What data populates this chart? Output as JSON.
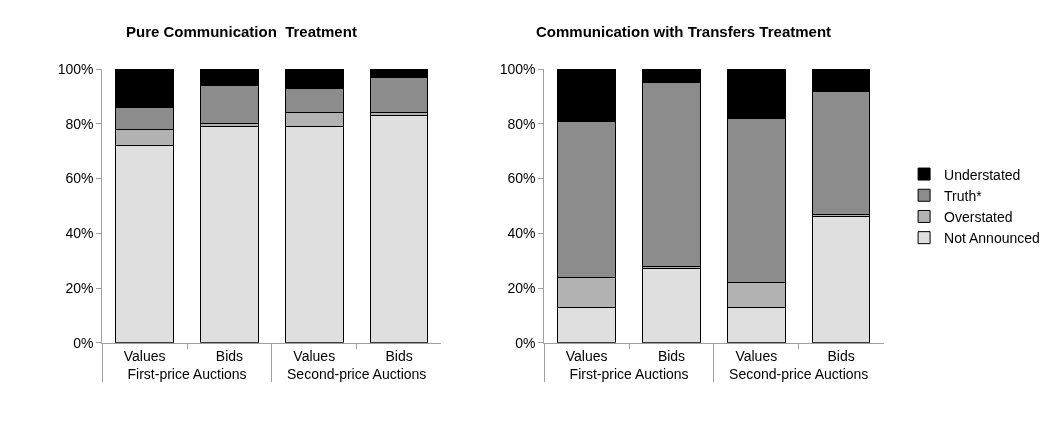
{
  "chart_data": [
    {
      "type": "bar",
      "title": "Pure Communication  Treatment",
      "stacked": true,
      "grid": false,
      "categories": [
        "Values",
        "Bids",
        "Values",
        "Bids"
      ],
      "annotations": [
        "First-price Auctions",
        "Second-price Auctions"
      ],
      "ylim": [
        0,
        100
      ],
      "yticks": [
        {
          "value": 0,
          "label": "0%"
        },
        {
          "value": 20,
          "label": "20%"
        },
        {
          "value": 40,
          "label": "40%"
        },
        {
          "value": 60,
          "label": "60%"
        },
        {
          "value": 80,
          "label": "80%"
        },
        {
          "value": 100,
          "label": "100%"
        }
      ],
      "series": [
        {
          "color": "#dfdfdf",
          "values": [
            72,
            79,
            79,
            83
          ]
        },
        {
          "color": "#b2b2b2",
          "values": [
            6,
            1,
            5,
            1
          ]
        },
        {
          "color": "#8c8c8c",
          "values": [
            8,
            14,
            9,
            13
          ]
        },
        {
          "color": "#000000",
          "values": [
            14,
            6,
            7,
            3
          ]
        }
      ]
    },
    {
      "type": "bar",
      "title": "Communication with Transfers Treatment",
      "stacked": true,
      "legend": "right",
      "grid": false,
      "categories": [
        "Values",
        "Bids",
        "Values",
        "Bids"
      ],
      "annotations": [
        "First-price Auctions",
        "Second-price Auctions"
      ],
      "ylim": [
        0,
        100
      ],
      "yticks": [
        {
          "value": 0,
          "label": "0%"
        },
        {
          "value": 20,
          "label": "20%"
        },
        {
          "value": 40,
          "label": "40%"
        },
        {
          "value": 60,
          "label": "60%"
        },
        {
          "value": 80,
          "label": "80%"
        },
        {
          "value": 100,
          "label": "100%"
        }
      ],
      "series": [
        {
          "name": "Not Announced",
          "color": "#dfdfdf",
          "values": [
            13,
            27,
            13,
            46
          ]
        },
        {
          "name": "Overstated",
          "color": "#b2b2b2",
          "values": [
            11,
            1,
            9,
            1
          ]
        },
        {
          "name": "Truth*",
          "color": "#8c8c8c",
          "values": [
            57,
            67,
            60,
            45
          ]
        },
        {
          "name": "Understated",
          "color": "#000000",
          "values": [
            19,
            5,
            18,
            8
          ]
        }
      ]
    }
  ]
}
